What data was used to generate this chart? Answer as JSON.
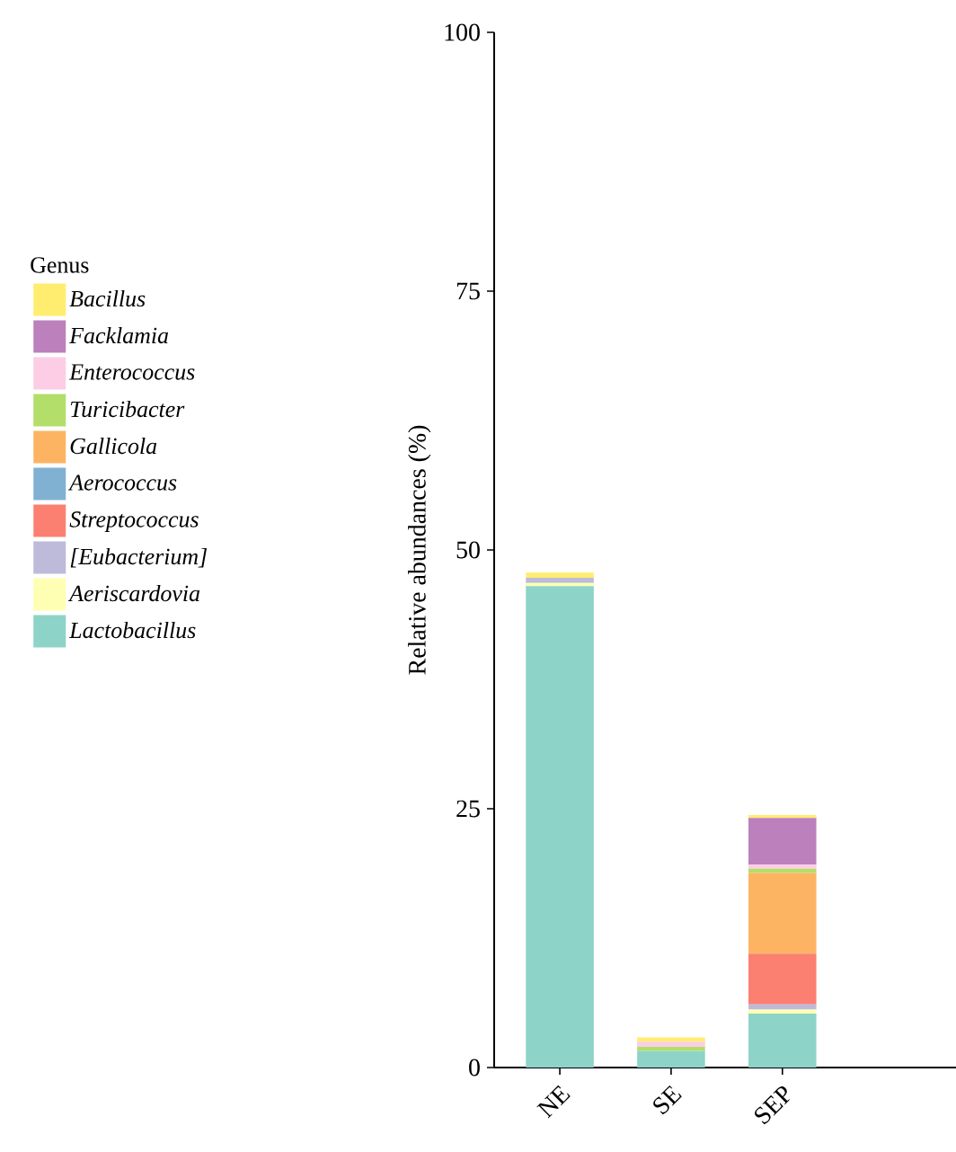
{
  "chart_data": {
    "type": "bar",
    "stacked": true,
    "ylabel": "Relative abundances (%)",
    "legend_title": "Genus",
    "legend": "left",
    "categories": [
      "NE",
      "SE",
      "SEP"
    ],
    "ylim": [
      0,
      100
    ],
    "yticks": [
      0,
      25,
      50,
      75,
      100
    ],
    "series": [
      {
        "name": "Lactobacillus",
        "color": "#8dd3c7",
        "values": [
          46.5,
          1.6,
          5.2
        ]
      },
      {
        "name": "Aeriscardovia",
        "color": "#ffffb3",
        "values": [
          0.3,
          null,
          0.4
        ]
      },
      {
        "name": "[Eubacterium]",
        "color": "#bebada",
        "values": [
          0.5,
          null,
          0.5
        ]
      },
      {
        "name": "Streptococcus",
        "color": "#fb8072",
        "values": [
          null,
          null,
          4.9
        ]
      },
      {
        "name": "Aerococcus",
        "color": "#80b1d3",
        "values": [
          null,
          null,
          null
        ]
      },
      {
        "name": "Gallicola",
        "color": "#fdb462",
        "values": [
          null,
          null,
          7.8
        ]
      },
      {
        "name": "Turicibacter",
        "color": "#b3de69",
        "values": [
          null,
          0.4,
          0.4
        ]
      },
      {
        "name": "Enterococcus",
        "color": "#fccde5",
        "values": [
          null,
          0.5,
          0.4
        ]
      },
      {
        "name": "Facklamia",
        "color": "#bc80bd",
        "values": [
          null,
          null,
          4.5
        ]
      },
      {
        "name": "Bacillus",
        "color": "#ffed6f",
        "values": [
          0.5,
          0.4,
          0.3
        ]
      }
    ]
  }
}
